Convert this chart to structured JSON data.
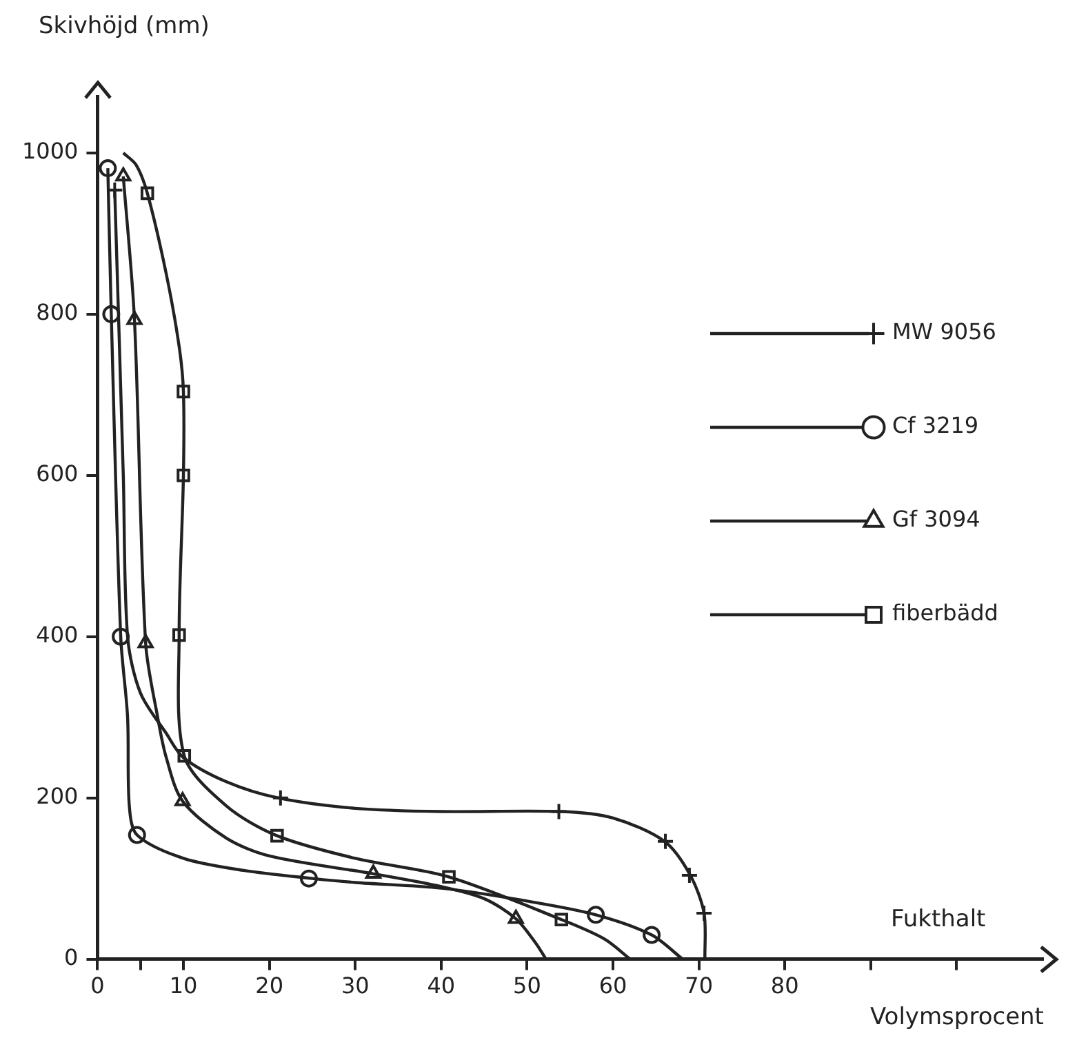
{
  "chart_data": {
    "type": "line",
    "ylabel": "Skivhöjd (mm)",
    "xlabel": "Volymsprocent",
    "annotations": [
      "Fukthalt"
    ],
    "xlim": [
      0,
      110
    ],
    "ylim": [
      0,
      1070
    ],
    "xticks": [
      0,
      {
        "value": 5,
        "label": null
      },
      10,
      20,
      30,
      40,
      50,
      60,
      70,
      80,
      {
        "value": 90,
        "label": null
      },
      {
        "value": 100,
        "label": null
      }
    ],
    "yticks": [
      0,
      200,
      400,
      600,
      800,
      1000
    ],
    "legend": "right",
    "series": [
      {
        "type": "line",
        "marker": "none",
        "color": "#222222",
        "x": [
          2,
          3,
          3.5,
          5,
          8,
          10,
          15,
          21,
          30,
          40,
          54,
          60,
          66,
          69,
          70.6,
          70.7
        ],
        "values": [
          954,
          600,
          400,
          330,
          280,
          250,
          220,
          200,
          187,
          183,
          183,
          175,
          146,
          104,
          57,
          0
        ]
      },
      {
        "type": "line",
        "marker": "none",
        "color": "#222222",
        "x": [
          1.2,
          1.6,
          2.7,
          3.5,
          3.7,
          4.6,
          10,
          17,
          25,
          30,
          40,
          50,
          58,
          64.5,
          68.1
        ],
        "values": [
          981,
          800,
          400,
          300,
          190,
          154,
          125,
          110,
          100,
          95,
          88,
          72,
          55,
          30,
          0
        ]
      },
      {
        "type": "line",
        "marker": "none",
        "color": "#222222",
        "x": [
          3,
          4.3,
          5.6,
          7,
          8,
          9.9,
          15,
          20,
          32,
          40,
          45,
          48.7,
          51,
          52.2
        ],
        "values": [
          971,
          793,
          392,
          300,
          250,
          196,
          150,
          128,
          106,
          90,
          75,
          50,
          20,
          0
        ]
      },
      {
        "type": "line",
        "marker": "none",
        "color": "#222222",
        "x": [
          3,
          4.5,
          5.8,
          8,
          9.5,
          10,
          10,
          9.5,
          10.1,
          15,
          20.9,
          30,
          40.9,
          54,
          59,
          62
        ],
        "values": [
          1000,
          985,
          950,
          850,
          760,
          704,
          600,
          402,
          252,
          190,
          153,
          125,
          102,
          49,
          25,
          0
        ]
      },
      {
        "type": "scatter",
        "name": "MW 9056",
        "marker": "cross",
        "color": "#222222",
        "x": [
          2,
          21.3,
          53.7,
          66.1,
          68.9,
          70.6
        ],
        "values": [
          954,
          200,
          183,
          146,
          104,
          57
        ]
      },
      {
        "type": "scatter",
        "name": "Cf 3219",
        "marker": "circle",
        "color": "#222222",
        "x": [
          1.2,
          1.6,
          2.7,
          4.6,
          24.6,
          58,
          64.5
        ],
        "values": [
          981,
          800,
          400,
          154,
          100,
          55,
          30
        ]
      },
      {
        "type": "scatter",
        "name": "Gf 3094",
        "marker": "triangle",
        "color": "#222222",
        "x": [
          3,
          4.3,
          5.6,
          9.9,
          32.1,
          48.7
        ],
        "values": [
          971,
          793,
          392,
          196,
          106,
          50
        ]
      },
      {
        "type": "scatter",
        "name": "fiberbädd",
        "marker": "square",
        "color": "#222222",
        "x": [
          5.8,
          10,
          10,
          9.5,
          10.1,
          20.9,
          40.9,
          54
        ],
        "values": [
          950,
          704,
          600,
          402,
          252,
          153,
          102,
          49
        ]
      }
    ]
  }
}
